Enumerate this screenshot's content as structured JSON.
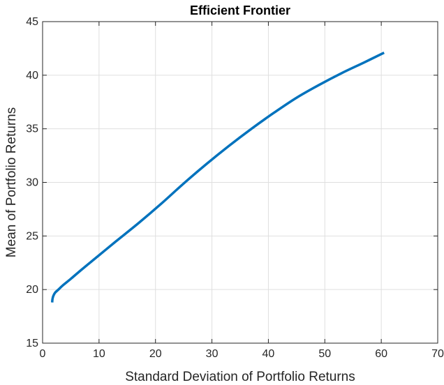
{
  "chart_data": {
    "type": "line",
    "title": "Efficient Frontier",
    "xlabel": "Standard Deviation of Portfolio Returns",
    "ylabel": "Mean of Portfolio Returns",
    "xlim": [
      0,
      70
    ],
    "ylim": [
      15,
      45
    ],
    "xticks": [
      0,
      10,
      20,
      30,
      40,
      50,
      60,
      70
    ],
    "yticks": [
      15,
      20,
      25,
      30,
      35,
      40,
      45
    ],
    "grid": true,
    "series": [
      {
        "color": "#0072BD",
        "x": [
          1.7,
          1.75,
          1.9,
          2.2,
          2.8,
          3.6,
          5.0,
          7.0,
          10.0,
          13.0,
          17.0,
          21.0,
          25.0,
          29.0,
          33.0,
          37.0,
          41.0,
          45.0,
          49.0,
          53.0,
          57.0,
          60.5
        ],
        "y": [
          18.8,
          19.1,
          19.4,
          19.7,
          20.0,
          20.4,
          21.0,
          21.9,
          23.2,
          24.5,
          26.2,
          28.0,
          29.9,
          31.7,
          33.4,
          35.0,
          36.5,
          37.9,
          39.1,
          40.2,
          41.2,
          42.1
        ]
      }
    ]
  }
}
